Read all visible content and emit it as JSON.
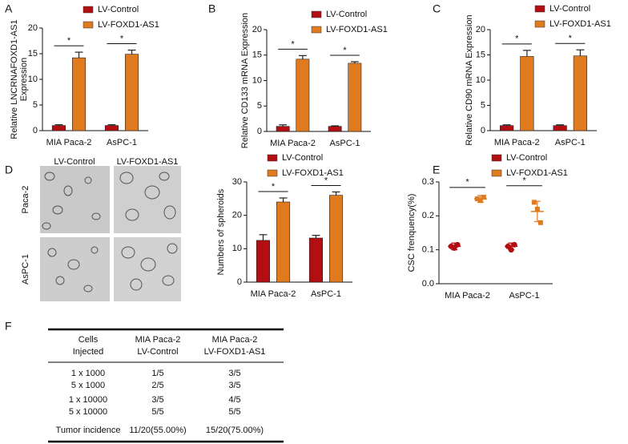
{
  "chart_data": [
    {
      "type": "bar",
      "panel": "A",
      "y_label": [
        "Relative LNCRNAFOXD1-AS1",
        "Expression"
      ],
      "categories": [
        "MIA Paca-2",
        "AsPC-1"
      ],
      "series": [
        {
          "name": "LV-Control",
          "color": "#b30f12",
          "values": [
            1.0,
            1.0
          ],
          "errors": [
            0.15,
            0.15
          ]
        },
        {
          "name": "LV-FOXD1-AS1",
          "color": "#e07a1f",
          "values": [
            14.2,
            14.9
          ],
          "errors": [
            1.1,
            0.8
          ]
        }
      ],
      "significance": [
        "*",
        "*"
      ],
      "ylim": [
        0,
        20
      ],
      "yticks": [
        0,
        5,
        10,
        15,
        20
      ]
    },
    {
      "type": "bar",
      "panel": "B",
      "y_label": "Relative CD133 mRNA Expression",
      "categories": [
        "MIA Paca-2",
        "AsPC-1"
      ],
      "series": [
        {
          "name": "LV-Control",
          "color": "#b30f12",
          "values": [
            1.0,
            1.0
          ],
          "errors": [
            0.3,
            0.1
          ]
        },
        {
          "name": "LV-FOXD1-AS1",
          "color": "#e07a1f",
          "values": [
            14.2,
            13.4
          ],
          "errors": [
            0.7,
            0.3
          ]
        }
      ],
      "significance": [
        "*",
        "*"
      ],
      "ylim": [
        0,
        20
      ],
      "yticks": [
        0,
        5,
        10,
        15,
        20
      ]
    },
    {
      "type": "bar",
      "panel": "C",
      "y_label": "Relative CD90 mRNA Expression",
      "categories": [
        "MIA Paca-2",
        "AsPC-1"
      ],
      "series": [
        {
          "name": "LV-Control",
          "color": "#b30f12",
          "values": [
            1.0,
            1.0
          ],
          "errors": [
            0.15,
            0.15
          ]
        },
        {
          "name": "LV-FOXD1-AS1",
          "color": "#e07a1f",
          "values": [
            14.7,
            14.8
          ],
          "errors": [
            1.2,
            1.2
          ]
        }
      ],
      "significance": [
        "*",
        "*"
      ],
      "ylim": [
        0,
        20
      ],
      "yticks": [
        0,
        5,
        10,
        15,
        20
      ]
    },
    {
      "type": "bar",
      "panel": "D",
      "y_label": "Numbers of spheroids",
      "categories": [
        "MIA Paca-2",
        "AsPC-1"
      ],
      "series": [
        {
          "name": "LV-Control",
          "color": "#b30f12",
          "values": [
            12.5,
            13.2
          ],
          "errors": [
            1.7,
            0.8
          ]
        },
        {
          "name": "LV-FOXD1-AS1",
          "color": "#e07a1f",
          "values": [
            24,
            26
          ],
          "errors": [
            1.2,
            1.0
          ]
        }
      ],
      "significance": [
        "*",
        "*"
      ],
      "ylim": [
        0,
        30
      ],
      "yticks": [
        0,
        10,
        20,
        30
      ]
    },
    {
      "type": "dot",
      "panel": "E",
      "y_label": "CSC frenquency(%)",
      "categories": [
        "MIA Paca-2",
        "AsPC-1"
      ],
      "series": [
        {
          "name": "LV-Control",
          "color": "#b30f12",
          "marker": "circle",
          "points": [
            [
              0.11,
              0.105,
              0.115
            ],
            [
              0.11,
              0.1,
              0.115
            ]
          ],
          "values": [
            0.11,
            0.11
          ],
          "errors": [
            0.01,
            0.01
          ]
        },
        {
          "name": "LV-FOXD1-AS1",
          "color": "#e07a1f",
          "marker": "square",
          "points": [
            [
              0.25,
              0.245,
              0.255
            ],
            [
              0.24,
              0.22,
              0.18
            ]
          ],
          "values": [
            0.25,
            0.213
          ],
          "errors": [
            0.01,
            0.03
          ]
        }
      ],
      "significance": [
        "*",
        "*"
      ],
      "ylim": [
        0,
        0.3
      ],
      "yticks": [
        {
          "value": 0,
          "label": "0.0"
        },
        0.1,
        0.2,
        0.3
      ]
    }
  ],
  "microscopy": {
    "columns": [
      "LV-Control",
      "LV-FOXD1-AS1"
    ],
    "rows": [
      "Paca-2",
      "AsPC-1"
    ]
  },
  "table": {
    "panel": "F",
    "header": [
      [
        "Cells",
        "Injected"
      ],
      [
        "MIA Paca-2",
        "LV-Control"
      ],
      [
        "MIA Paca-2",
        "LV-FOXD1-AS1"
      ]
    ],
    "rows": [
      [
        "1 x 1000",
        "1/5",
        "3/5"
      ],
      [
        "5 x 1000",
        "2/5",
        "3/5"
      ],
      [
        "1 x 10000",
        "3/5",
        "4/5"
      ],
      [
        "5 x 10000",
        "5/5",
        "5/5"
      ],
      [
        "Tumor incidence",
        "11/20(55.00%)",
        "15/20(75.00%)"
      ]
    ]
  }
}
